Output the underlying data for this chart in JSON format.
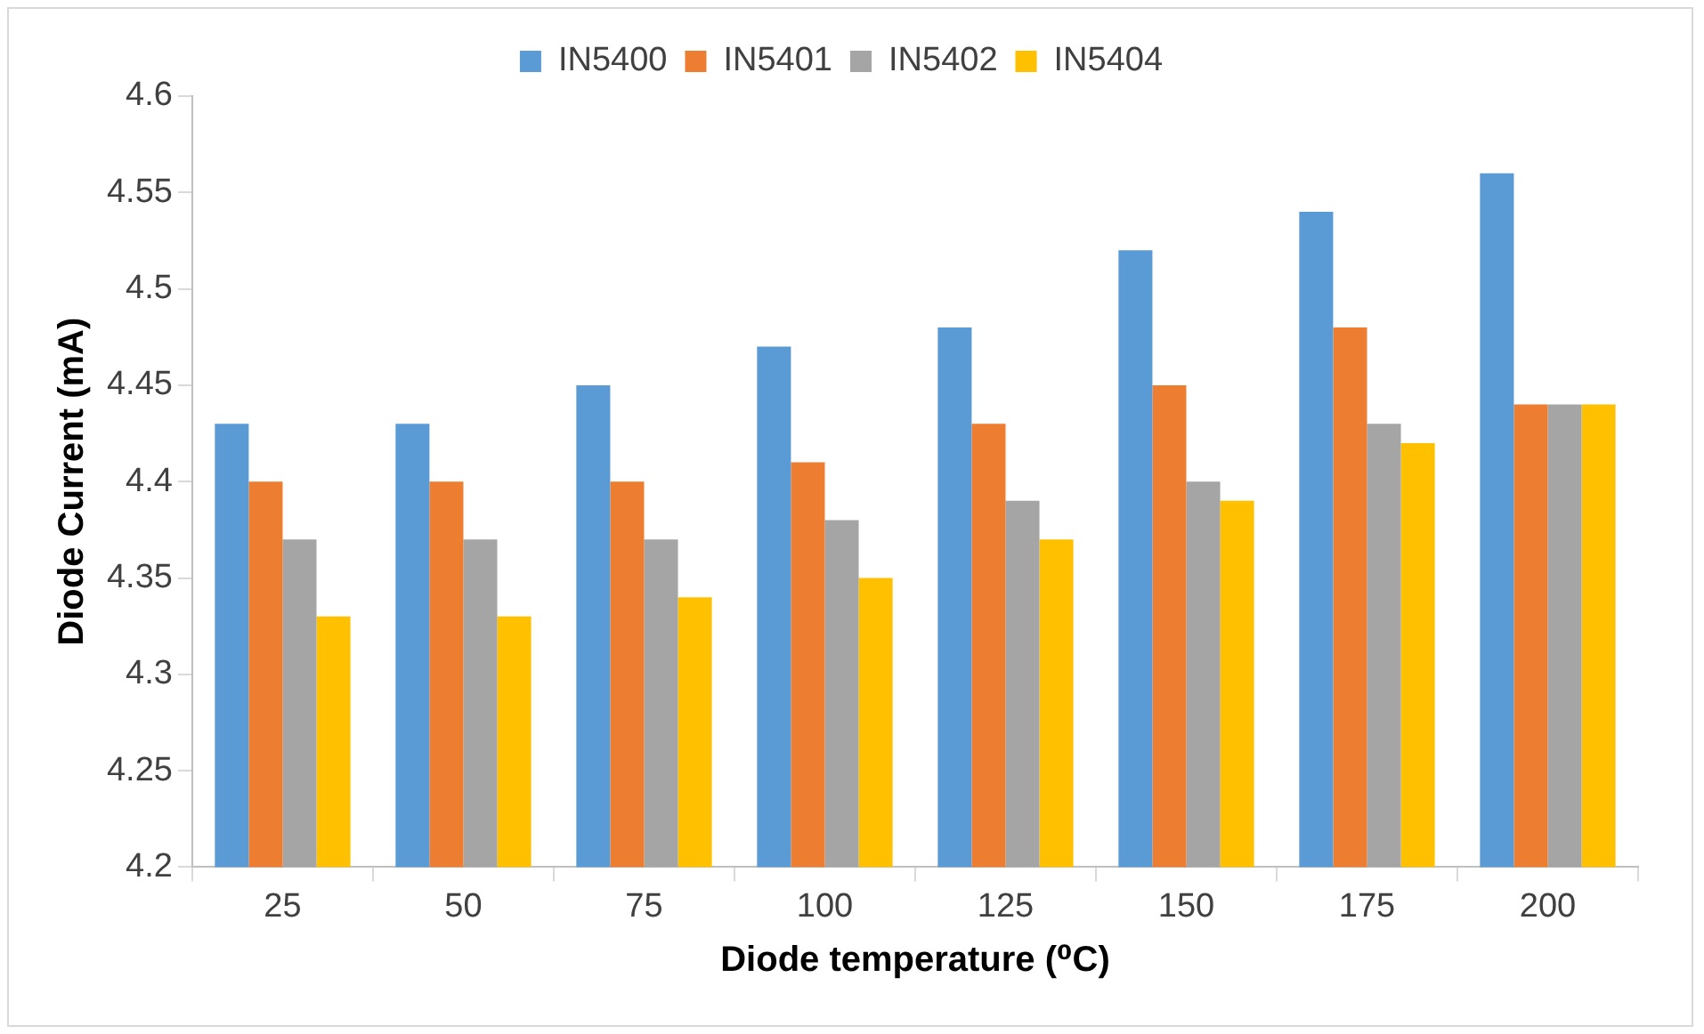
{
  "chart_data": {
    "type": "bar",
    "xlabel": "Diode temperature (⁰C)",
    "ylabel": "Diode Current (mA)",
    "categories": [
      "25",
      "50",
      "75",
      "100",
      "125",
      "150",
      "175",
      "200"
    ],
    "series": [
      {
        "name": "IN5400",
        "color": "#5b9bd5",
        "values": [
          4.43,
          4.43,
          4.45,
          4.47,
          4.48,
          4.52,
          4.54,
          4.56
        ]
      },
      {
        "name": "IN5401",
        "color": "#ed7d31",
        "values": [
          4.4,
          4.4,
          4.4,
          4.41,
          4.43,
          4.45,
          4.48,
          4.44
        ]
      },
      {
        "name": "IN5402",
        "color": "#a5a5a5",
        "values": [
          4.37,
          4.37,
          4.37,
          4.38,
          4.39,
          4.4,
          4.43,
          4.44
        ]
      },
      {
        "name": "IN5404",
        "color": "#ffc000",
        "values": [
          4.33,
          4.33,
          4.34,
          4.35,
          4.37,
          4.39,
          4.42,
          4.44
        ]
      }
    ],
    "ylim": [
      4.2,
      4.6
    ],
    "yticks": [
      4.2,
      4.25,
      4.3,
      4.35,
      4.4,
      4.45,
      4.5,
      4.55,
      4.6
    ],
    "grid": false,
    "legend": "top"
  }
}
